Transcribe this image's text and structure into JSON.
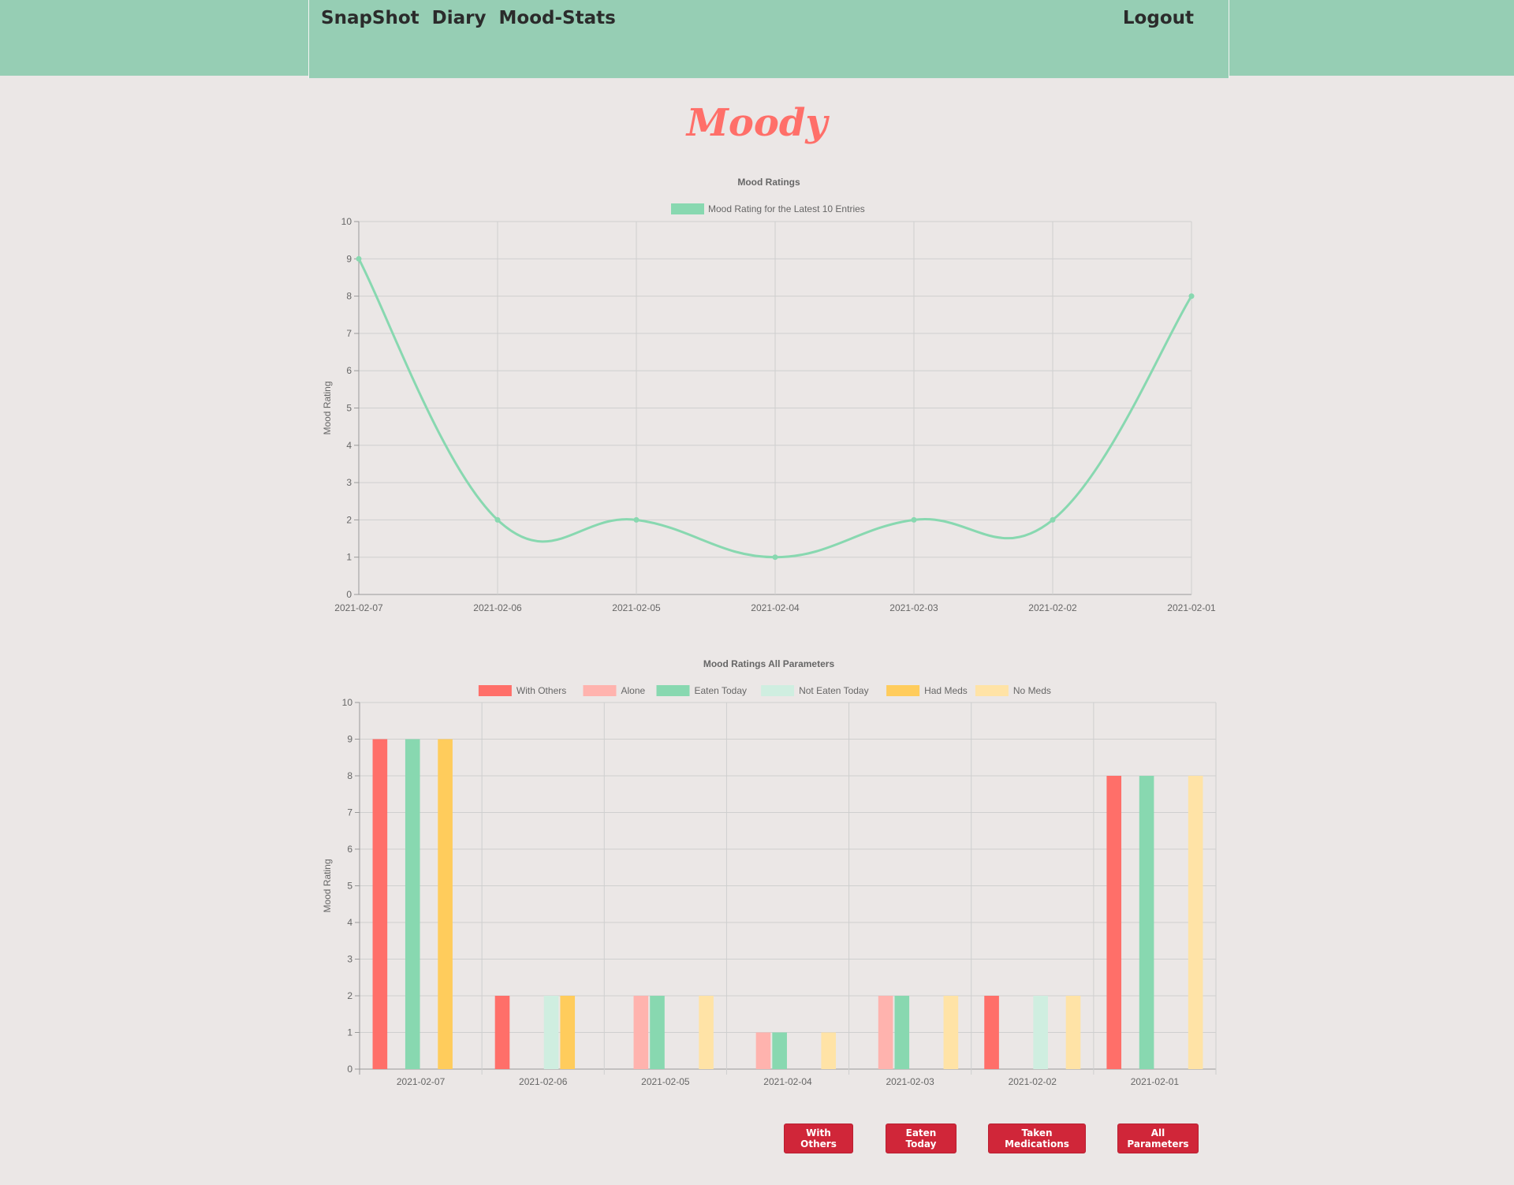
{
  "nav": {
    "links": [
      "SnapShot",
      "Diary",
      "Mood-Stats"
    ],
    "logout": "Logout"
  },
  "brand": "Moody",
  "colors": {
    "nav_bg": "#96ceb4",
    "brand": "#ff6f69",
    "button": "#d02639",
    "page_bg": "#ebe7e6"
  },
  "chart_data": [
    {
      "type": "line",
      "title": "Mood Ratings",
      "x": [
        "2021-02-07",
        "2021-02-06",
        "2021-02-05",
        "2021-02-04",
        "2021-02-03",
        "2021-02-02",
        "2021-02-01"
      ],
      "series": [
        {
          "name": "Mood Rating for the Latest 10 Entries",
          "color": "#88d8b0",
          "values": [
            9,
            2,
            2,
            1,
            2,
            2,
            8
          ]
        }
      ],
      "xlabel": "",
      "ylabel": "Mood Rating",
      "ylim": [
        0,
        10
      ],
      "yticks": [
        0,
        1,
        2,
        3,
        4,
        5,
        6,
        7,
        8,
        9,
        10
      ],
      "grid": true,
      "legend": "top-center"
    },
    {
      "type": "bar",
      "title": "Mood Ratings All Parameters",
      "categories": [
        "2021-02-07",
        "2021-02-06",
        "2021-02-05",
        "2021-02-04",
        "2021-02-03",
        "2021-02-02",
        "2021-02-01"
      ],
      "series": [
        {
          "name": "With Others",
          "color": "#ff6f69",
          "values": [
            9,
            2,
            0,
            0,
            0,
            2,
            8
          ]
        },
        {
          "name": "Alone",
          "color": "#ffb3ae",
          "values": [
            0,
            0,
            2,
            1,
            2,
            0,
            0
          ]
        },
        {
          "name": "Eaten Today",
          "color": "#88d8b0",
          "values": [
            9,
            0,
            2,
            1,
            2,
            0,
            8
          ]
        },
        {
          "name": "Not Eaten Today",
          "color": "#cfeee0",
          "values": [
            0,
            2,
            0,
            0,
            0,
            2,
            0
          ]
        },
        {
          "name": "Had Meds",
          "color": "#ffcc5c",
          "values": [
            9,
            2,
            0,
            0,
            0,
            0,
            0
          ]
        },
        {
          "name": "No Meds",
          "color": "#ffe3a6",
          "values": [
            0,
            0,
            2,
            1,
            2,
            2,
            8
          ]
        }
      ],
      "xlabel": "",
      "ylabel": "Mood Rating",
      "ylim": [
        0,
        10
      ],
      "yticks": [
        0,
        1,
        2,
        3,
        4,
        5,
        6,
        7,
        8,
        9,
        10
      ],
      "grid": true,
      "legend": "top-center"
    }
  ],
  "buttons": [
    {
      "label": "With Others"
    },
    {
      "label": "Eaten Today"
    },
    {
      "label": "Taken Medications"
    },
    {
      "label": "All Parameters"
    }
  ]
}
